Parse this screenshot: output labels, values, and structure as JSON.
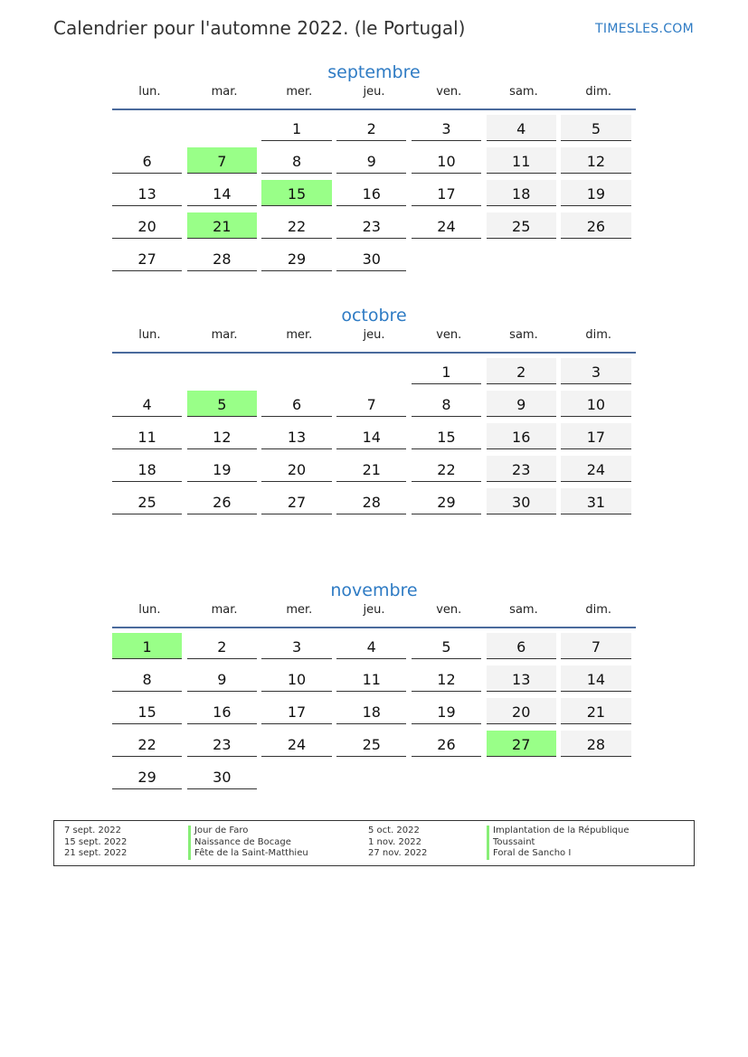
{
  "header": {
    "title": "Calendrier pour l'automne 2022. (le Portugal)",
    "brand": "TIMESLES.COM"
  },
  "weekdays": [
    "lun.",
    "mar.",
    "mer.",
    "jeu.",
    "ven.",
    "sam.",
    "dim."
  ],
  "colors": {
    "accent": "#2e7bc4",
    "holiday": "#99ff88",
    "weekend": "#f3f3f3",
    "rule": "#4a6a9c"
  },
  "months": [
    {
      "name": "septembre",
      "start": 3,
      "days": 30,
      "holidays": [
        7,
        15,
        21
      ]
    },
    {
      "name": "octobre",
      "start": 5,
      "days": 31,
      "holidays": [
        5
      ]
    },
    {
      "name": "novembre",
      "start": 1,
      "days": 30,
      "holidays": [
        1,
        27
      ]
    }
  ],
  "legend": {
    "left": [
      {
        "date": "7 sept. 2022",
        "name": "Jour de Faro"
      },
      {
        "date": "15 sept. 2022",
        "name": "Naissance de Bocage"
      },
      {
        "date": "21 sept. 2022",
        "name": "Fête de la Saint-Matthieu"
      }
    ],
    "right": [
      {
        "date": "5 oct. 2022",
        "name": "Implantation de la République"
      },
      {
        "date": "1 nov. 2022",
        "name": "Toussaint"
      },
      {
        "date": "27 nov. 2022",
        "name": "Foral de Sancho I"
      }
    ]
  }
}
